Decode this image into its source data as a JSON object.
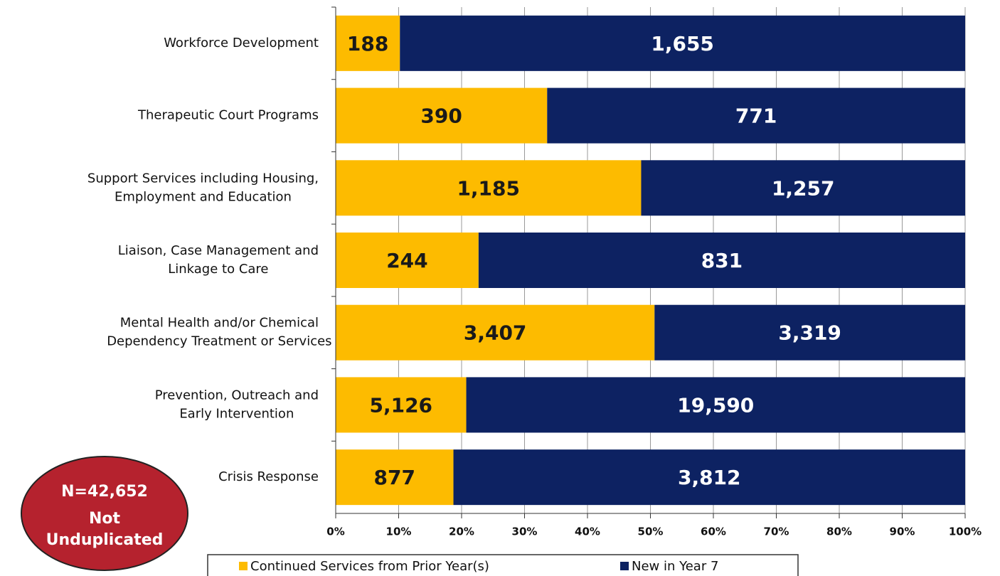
{
  "chart_data": {
    "type": "bar",
    "orientation": "horizontal",
    "stacking": "percent",
    "categories": [
      [
        "Workforce Development"
      ],
      [
        "Therapeutic Court Programs"
      ],
      [
        "Support Services including Housing,",
        "Employment and Education"
      ],
      [
        "Liaison, Case Management and",
        "Linkage to Care"
      ],
      [
        "Mental Health and/or Chemical",
        "Dependency Treatment or Services"
      ],
      [
        "Prevention, Outreach and",
        "Early Intervention"
      ],
      [
        "Crisis Response"
      ]
    ],
    "series": [
      {
        "name": "Continued Services from Prior Year(s)",
        "color": "#fdbb00",
        "label_color": "#1a1a1a",
        "values": [
          188,
          390,
          1185,
          244,
          3407,
          5126,
          877
        ],
        "value_labels": [
          "188",
          "390",
          "1,185",
          "244",
          "3,407",
          "5,126",
          "877"
        ]
      },
      {
        "name": "New in Year 7",
        "color": "#0d2262",
        "label_color": "#ffffff",
        "values": [
          1655,
          771,
          1257,
          831,
          3319,
          19590,
          3812
        ],
        "value_labels": [
          "1,655",
          "771",
          "1,257",
          "831",
          "3,319",
          "19,590",
          "3,812"
        ]
      }
    ],
    "xlim": [
      0,
      100
    ],
    "xticks": [
      {
        "value": 0,
        "label": "0%"
      },
      {
        "value": 10,
        "label": "10%"
      },
      {
        "value": 20,
        "label": "20%"
      },
      {
        "value": 30,
        "label": "30%"
      },
      {
        "value": 40,
        "label": "40%"
      },
      {
        "value": 50,
        "label": "50%"
      },
      {
        "value": 60,
        "label": "60%"
      },
      {
        "value": 70,
        "label": "70%"
      },
      {
        "value": 80,
        "label": "80%"
      },
      {
        "value": 90,
        "label": "90%"
      },
      {
        "value": 100,
        "label": "100%"
      }
    ],
    "grid": true,
    "legend": "bottom",
    "annotation": {
      "lines": [
        "N=42,652",
        "Not",
        "Unduplicated"
      ],
      "color": "#b5222e"
    }
  }
}
